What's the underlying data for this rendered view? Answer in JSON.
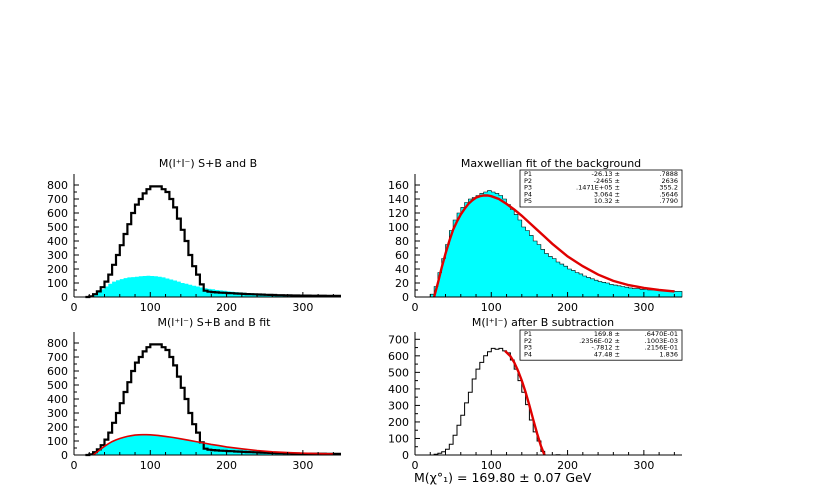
{
  "chart_data": [
    {
      "type": "histogram",
      "title": "M(l⁺l⁻)  S+B and B",
      "xlim": [
        0,
        350
      ],
      "ylim": [
        0,
        850
      ],
      "xticks": [
        0,
        100,
        200,
        300
      ],
      "yticks": [
        0,
        100,
        200,
        300,
        400,
        500,
        600,
        700,
        800
      ],
      "xtick_labels": [
        "0",
        "100",
        "200",
        "300"
      ],
      "ytick_labels": [
        "0",
        "100",
        "200",
        "300",
        "400",
        "500",
        "600",
        "700",
        "800"
      ],
      "bin_width": 5,
      "series": [
        {
          "role": "S+B",
          "style": "black-outline",
          "color": "#000000",
          "x": [
            15,
            20,
            25,
            30,
            35,
            40,
            45,
            50,
            55,
            60,
            65,
            70,
            75,
            80,
            85,
            90,
            95,
            100,
            105,
            110,
            115,
            120,
            125,
            130,
            135,
            140,
            145,
            150,
            155,
            160,
            165,
            170,
            175,
            180,
            185,
            190,
            195,
            200,
            205,
            210,
            215,
            220,
            225,
            230,
            235,
            240,
            245,
            250,
            255,
            260,
            265,
            270,
            275,
            280,
            285,
            290,
            295,
            300,
            305,
            310,
            315,
            320,
            325,
            330,
            335,
            340,
            345
          ],
          "values": [
            0,
            5,
            20,
            40,
            70,
            110,
            160,
            230,
            300,
            370,
            450,
            520,
            600,
            660,
            700,
            740,
            770,
            790,
            790,
            790,
            770,
            750,
            700,
            640,
            560,
            480,
            400,
            300,
            220,
            160,
            90,
            45,
            38,
            35,
            33,
            31,
            30,
            28,
            27,
            25,
            24,
            22,
            21,
            20,
            19,
            18,
            17,
            16,
            15,
            14,
            13,
            13,
            12,
            12,
            11,
            11,
            10,
            10,
            10,
            9,
            9,
            9,
            9,
            8,
            8,
            8,
            8
          ]
        },
        {
          "role": "B",
          "style": "cyan-fill",
          "color": "#00ffff",
          "x": [
            15,
            20,
            25,
            30,
            35,
            40,
            45,
            50,
            55,
            60,
            65,
            70,
            75,
            80,
            85,
            90,
            95,
            100,
            105,
            110,
            115,
            120,
            125,
            130,
            135,
            140,
            145,
            150,
            155,
            160,
            165,
            170,
            175,
            180,
            185,
            190,
            195,
            200,
            205,
            210,
            215,
            220,
            225,
            230,
            235,
            240,
            245,
            250,
            255,
            260,
            265,
            270,
            275,
            280,
            285,
            290,
            295,
            300,
            305,
            310,
            315,
            320,
            325,
            330,
            335,
            340,
            345
          ],
          "values": [
            0,
            4,
            15,
            35,
            55,
            75,
            95,
            110,
            120,
            128,
            135,
            140,
            142,
            145,
            148,
            150,
            152,
            150,
            148,
            145,
            140,
            132,
            125,
            118,
            110,
            100,
            95,
            88,
            80,
            75,
            68,
            62,
            58,
            55,
            50,
            47,
            44,
            40,
            38,
            35,
            33,
            30,
            28,
            26,
            24,
            22,
            21,
            20,
            18,
            17,
            16,
            15,
            14,
            13,
            12,
            12,
            11,
            11,
            10,
            10,
            10,
            9,
            9,
            9,
            9,
            8,
            8
          ]
        }
      ]
    },
    {
      "type": "histogram",
      "title": "Maxwellian fit of the background",
      "xlim": [
        0,
        350
      ],
      "ylim": [
        0,
        170
      ],
      "xticks": [
        0,
        100,
        200,
        300
      ],
      "yticks": [
        0,
        20,
        40,
        60,
        80,
        100,
        120,
        140,
        160
      ],
      "xtick_labels": [
        "0",
        "100",
        "200",
        "300"
      ],
      "ytick_labels": [
        "0",
        "20",
        "40",
        "60",
        "80",
        "100",
        "120",
        "140",
        "160"
      ],
      "bin_width": 5,
      "series": [
        {
          "role": "B",
          "style": "cyan-fill-outline",
          "color": "#00ffff",
          "x": [
            15,
            20,
            25,
            30,
            35,
            40,
            45,
            50,
            55,
            60,
            65,
            70,
            75,
            80,
            85,
            90,
            95,
            100,
            105,
            110,
            115,
            120,
            125,
            130,
            135,
            140,
            145,
            150,
            155,
            160,
            165,
            170,
            175,
            180,
            185,
            190,
            195,
            200,
            205,
            210,
            215,
            220,
            225,
            230,
            235,
            240,
            245,
            250,
            255,
            260,
            265,
            270,
            275,
            280,
            285,
            290,
            295,
            300,
            305,
            310,
            315,
            320,
            325,
            330,
            335,
            340,
            345
          ],
          "values": [
            0,
            4,
            15,
            35,
            55,
            75,
            95,
            110,
            120,
            128,
            135,
            140,
            142,
            145,
            148,
            150,
            152,
            150,
            148,
            145,
            140,
            132,
            125,
            118,
            110,
            100,
            95,
            88,
            80,
            75,
            68,
            62,
            58,
            55,
            50,
            47,
            44,
            40,
            38,
            35,
            33,
            30,
            28,
            26,
            24,
            22,
            21,
            20,
            18,
            17,
            16,
            15,
            14,
            13,
            12,
            12,
            11,
            11,
            10,
            10,
            10,
            9,
            9,
            9,
            9,
            8,
            8
          ]
        },
        {
          "role": "fit",
          "style": "red-curve",
          "color": "#e00000",
          "model": "maxwellian",
          "x": [
            25,
            30,
            35,
            40,
            45,
            50,
            55,
            60,
            65,
            70,
            75,
            80,
            85,
            90,
            95,
            100,
            110,
            120,
            130,
            140,
            150,
            160,
            170,
            180,
            190,
            200,
            220,
            240,
            260,
            280,
            300,
            320,
            340
          ],
          "values": [
            0,
            20,
            42,
            62,
            80,
            96,
            108,
            118,
            126,
            133,
            138,
            142,
            144,
            145,
            145,
            144,
            140,
            133,
            125,
            116,
            106,
            96,
            86,
            76,
            67,
            58,
            44,
            32,
            23,
            17,
            13,
            10,
            8
          ]
        }
      ],
      "stats_box": [
        {
          "name": "P1",
          "value": "-26.13",
          "error": ".7888"
        },
        {
          "name": "P2",
          "value": "-2465",
          "error": "2636"
        },
        {
          "name": "P3",
          "value": ".1471E+05",
          "error": "355.2"
        },
        {
          "name": "P4",
          "value": "3.064",
          "error": ".5646"
        },
        {
          "name": "P5",
          "value": "10.32",
          "error": ".7790"
        }
      ]
    },
    {
      "type": "histogram",
      "title": "M(l⁺l⁻)  S+B and B fit",
      "xlim": [
        0,
        350
      ],
      "ylim": [
        0,
        850
      ],
      "xticks": [
        0,
        100,
        200,
        300
      ],
      "yticks": [
        0,
        100,
        200,
        300,
        400,
        500,
        600,
        700,
        800
      ],
      "xtick_labels": [
        "0",
        "100",
        "200",
        "300"
      ],
      "ytick_labels": [
        "0",
        "100",
        "200",
        "300",
        "400",
        "500",
        "600",
        "700",
        "800"
      ],
      "bin_width": 5,
      "series": [
        {
          "role": "S+B",
          "style": "black-outline",
          "color": "#000000",
          "x": [
            15,
            20,
            25,
            30,
            35,
            40,
            45,
            50,
            55,
            60,
            65,
            70,
            75,
            80,
            85,
            90,
            95,
            100,
            105,
            110,
            115,
            120,
            125,
            130,
            135,
            140,
            145,
            150,
            155,
            160,
            165,
            170,
            175,
            180,
            185,
            190,
            195,
            200,
            205,
            210,
            215,
            220,
            225,
            230,
            235,
            240,
            245,
            250,
            255,
            260,
            265,
            270,
            275,
            280,
            285,
            290,
            295,
            300,
            305,
            310,
            315,
            320,
            325,
            330,
            335,
            340,
            345
          ],
          "values": [
            0,
            5,
            20,
            40,
            70,
            110,
            160,
            230,
            300,
            370,
            450,
            520,
            600,
            660,
            700,
            740,
            770,
            790,
            790,
            790,
            770,
            750,
            700,
            640,
            560,
            480,
            400,
            300,
            220,
            160,
            90,
            45,
            38,
            35,
            33,
            31,
            30,
            28,
            27,
            25,
            24,
            22,
            21,
            20,
            19,
            18,
            17,
            16,
            15,
            14,
            13,
            13,
            12,
            12,
            11,
            11,
            10,
            10,
            10,
            9,
            9,
            9,
            9,
            8,
            8,
            8,
            8
          ]
        },
        {
          "role": "B fit",
          "style": "cyan-fill-red-curve",
          "color": "#00ffff",
          "line_color": "#e00000",
          "x": [
            25,
            30,
            35,
            40,
            45,
            50,
            55,
            60,
            65,
            70,
            75,
            80,
            85,
            90,
            95,
            100,
            110,
            120,
            130,
            140,
            150,
            160,
            170,
            180,
            190,
            200,
            220,
            240,
            260,
            280,
            300,
            320,
            340
          ],
          "values": [
            0,
            20,
            42,
            62,
            80,
            96,
            108,
            118,
            126,
            133,
            138,
            142,
            144,
            145,
            145,
            144,
            140,
            133,
            125,
            116,
            106,
            96,
            86,
            76,
            67,
            58,
            44,
            32,
            23,
            17,
            13,
            10,
            8
          ]
        }
      ]
    },
    {
      "type": "histogram",
      "title": "M(l⁺l⁻) after B subtraction",
      "xlim": [
        0,
        350
      ],
      "ylim": [
        0,
        720
      ],
      "xticks": [
        0,
        100,
        200,
        300
      ],
      "yticks": [
        0,
        100,
        200,
        300,
        400,
        500,
        600,
        700
      ],
      "xtick_labels": [
        "0",
        "100",
        "200",
        "300"
      ],
      "ytick_labels": [
        "0",
        "100",
        "200",
        "300",
        "400",
        "500",
        "600",
        "700"
      ],
      "bin_width": 5,
      "series": [
        {
          "role": "S",
          "style": "black-outline",
          "color": "#000000",
          "x": [
            15,
            20,
            25,
            30,
            35,
            40,
            45,
            50,
            55,
            60,
            65,
            70,
            75,
            80,
            85,
            90,
            95,
            100,
            105,
            110,
            115,
            120,
            125,
            130,
            135,
            140,
            145,
            150,
            155,
            160,
            165,
            170,
            175,
            180,
            185,
            190,
            195,
            200,
            205,
            210,
            215,
            220,
            225,
            230,
            235,
            240,
            245,
            250,
            255,
            260,
            265,
            270,
            275,
            280,
            285,
            290,
            295,
            300,
            305,
            310,
            315,
            320,
            325,
            330,
            335,
            340,
            345
          ],
          "values": [
            0,
            0,
            5,
            10,
            20,
            35,
            65,
            120,
            180,
            240,
            315,
            380,
            460,
            520,
            560,
            600,
            625,
            645,
            640,
            645,
            630,
            618,
            575,
            520,
            450,
            380,
            305,
            212,
            140,
            85,
            22,
            0,
            0,
            0,
            2,
            0,
            0,
            0,
            0,
            0,
            0,
            0,
            0,
            0,
            0,
            0,
            0,
            0,
            0,
            0,
            0,
            0,
            0,
            0,
            0,
            0,
            0,
            0,
            0,
            0,
            0,
            0,
            0,
            0,
            0,
            0,
            0
          ]
        },
        {
          "role": "fit",
          "style": "red-curve",
          "color": "#e00000",
          "x": [
            118,
            125,
            130,
            135,
            140,
            145,
            150,
            155,
            160,
            165,
            169.8
          ],
          "values": [
            630,
            598,
            560,
            510,
            450,
            380,
            300,
            215,
            130,
            55,
            0
          ]
        }
      ],
      "stats_box": [
        {
          "name": "P1",
          "value": "169.8",
          "error": ".6470E-01"
        },
        {
          "name": "P2",
          "value": ".2356E-02",
          "error": ".1003E-03"
        },
        {
          "name": "P3",
          "value": "-.7812",
          "error": ".2156E-01"
        },
        {
          "name": "P4",
          "value": "47.48",
          "error": "1.836"
        }
      ],
      "annotation": "M(χ°₁) = 169.80 ± 0.07 GeV"
    }
  ]
}
